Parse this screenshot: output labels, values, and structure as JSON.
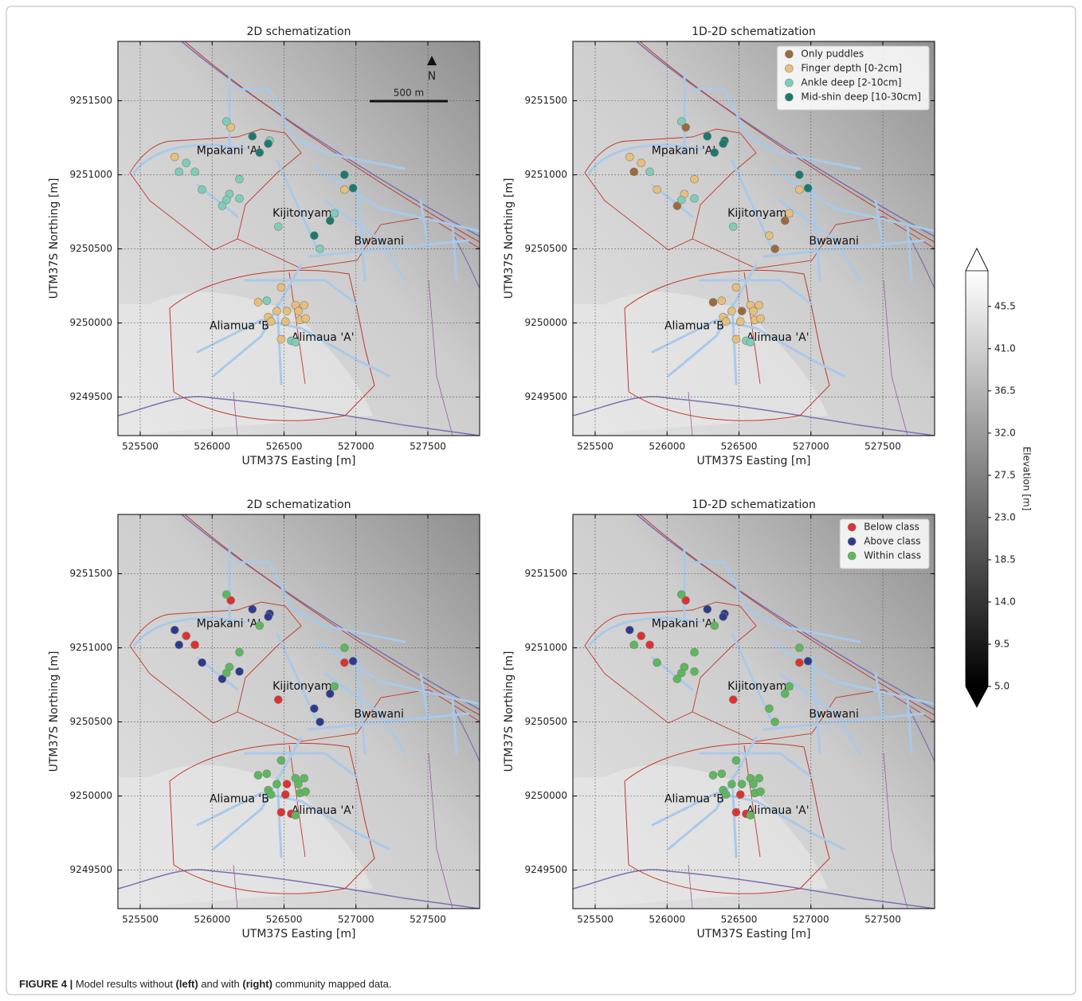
{
  "chart_data": [
    {
      "type": "scatter",
      "title": "2D schematization",
      "xlabel": "UTM37S Easting [m]",
      "ylabel": "UTM37S Northing [m]",
      "xlim": [
        525345,
        527860
      ],
      "ylim": [
        9249240,
        9251900
      ],
      "xticks": [
        525500,
        526000,
        526500,
        527000,
        527500
      ],
      "yticks": [
        9249500,
        9250000,
        9250500,
        9251000,
        9251500
      ],
      "grid": true,
      "north_label": "N",
      "scale_label": "500 m",
      "annotations": [
        {
          "text": "Mpakani 'A'",
          "x": 526115,
          "y": 9251160
        },
        {
          "text": "Kijitonyama",
          "x": 526650,
          "y": 9250740
        },
        {
          "text": "Bwawani",
          "x": 527160,
          "y": 9250550
        },
        {
          "text": "Aliamua 'B'",
          "x": 526200,
          "y": 9249980
        },
        {
          "text": "Alimaua 'A'",
          "x": 526770,
          "y": 9249900
        }
      ],
      "series": [
        {
          "color": "#e6c07a",
          "x": [
            526130,
            525740,
            526920,
            526480,
            526320,
            526450,
            526390,
            526520,
            526580,
            526640,
            526600,
            526410,
            526510,
            526610,
            526650,
            526480
          ],
          "y": [
            9251320,
            9251120,
            9250900,
            9250240,
            9250140,
            9250080,
            9250040,
            9250080,
            9250120,
            9250120,
            9250080,
            9250010,
            9250010,
            9250020,
            9250030,
            9249890
          ]
        },
        {
          "color": "#7ecdb9",
          "x": [
            526100,
            526400,
            525820,
            525770,
            525880,
            525930,
            526190,
            526120,
            526100,
            526070,
            526190,
            526850,
            526460,
            526750,
            526380,
            526550,
            526580
          ],
          "y": [
            9251360,
            9251230,
            9251080,
            9251020,
            9251020,
            9250900,
            9250970,
            9250870,
            9250830,
            9250790,
            9250840,
            9250740,
            9250650,
            9250500,
            9250150,
            9249880,
            9249870
          ]
        },
        {
          "color": "#1a7a6e",
          "x": [
            526280,
            526390,
            526330,
            526920,
            526980,
            526820,
            526710
          ],
          "y": [
            9251260,
            9251210,
            9251150,
            9251000,
            9250910,
            9250690,
            9250590
          ]
        }
      ]
    },
    {
      "type": "scatter",
      "title": "1D-2D schematization",
      "xlabel": "UTM37S Easting [m]",
      "ylabel": "UTM37S Northing [m]",
      "xlim": [
        525345,
        527860
      ],
      "ylim": [
        9249240,
        9251900
      ],
      "xticks": [
        525500,
        526000,
        526500,
        527000,
        527500
      ],
      "yticks": [
        9249500,
        9250000,
        9250500,
        9251000,
        9251500
      ],
      "grid": true,
      "legend": "upper right",
      "annotations": [
        {
          "text": "Mpakani 'A'",
          "x": 526115,
          "y": 9251160
        },
        {
          "text": "Kijitonyama",
          "x": 526650,
          "y": 9250740
        },
        {
          "text": "Bwawani",
          "x": 527160,
          "y": 9250550
        },
        {
          "text": "Aliamua 'B'",
          "x": 526200,
          "y": 9249980
        },
        {
          "text": "Alimaua 'A'",
          "x": 526770,
          "y": 9249900
        }
      ],
      "series": [
        {
          "name": "Only puddles",
          "color": "#9c6a3a",
          "x": [
            526130,
            525770,
            526070,
            526820,
            526750,
            526320,
            526520
          ],
          "y": [
            9251320,
            9251020,
            9250790,
            9250690,
            9250500,
            9250140,
            9250080
          ]
        },
        {
          "name": "Finger depth [0-2cm]",
          "color": "#e6c07a",
          "x": [
            525740,
            525820,
            525930,
            526190,
            526120,
            526920,
            526850,
            526710,
            526480,
            526380,
            526450,
            526390,
            526580,
            526640,
            526600,
            526410,
            526510,
            526610,
            526650,
            526480
          ],
          "y": [
            9251120,
            9251080,
            9250900,
            9250970,
            9250870,
            9250900,
            9250740,
            9250590,
            9250240,
            9250150,
            9250080,
            9250040,
            9250120,
            9250120,
            9250080,
            9250010,
            9250010,
            9250020,
            9250030,
            9249890
          ]
        },
        {
          "name": "Ankle deep [2-10cm]",
          "color": "#7ecdb9",
          "x": [
            526100,
            525880,
            526100,
            526190,
            526460,
            526550,
            526580
          ],
          "y": [
            9251360,
            9251020,
            9250830,
            9250840,
            9250650,
            9249880,
            9249870
          ]
        },
        {
          "name": "Mid-shin deep [10-30cm]",
          "color": "#1a7a6e",
          "x": [
            526280,
            526400,
            526390,
            526330,
            526920,
            526980
          ],
          "y": [
            9251260,
            9251230,
            9251210,
            9251150,
            9251000,
            9250910
          ]
        }
      ]
    },
    {
      "type": "scatter",
      "title": "2D schematization",
      "xlabel": "UTM37S Easting [m]",
      "ylabel": "UTM37S Northing [m]",
      "xlim": [
        525345,
        527860
      ],
      "ylim": [
        9249240,
        9251900
      ],
      "xticks": [
        525500,
        526000,
        526500,
        527000,
        527500
      ],
      "yticks": [
        9249500,
        9250000,
        9250500,
        9251000,
        9251500
      ],
      "grid": true,
      "annotations": [
        {
          "text": "Mpakani 'A'",
          "x": 526115,
          "y": 9251160
        },
        {
          "text": "Kijitonyama",
          "x": 526650,
          "y": 9250740
        },
        {
          "text": "Bwawani",
          "x": 527160,
          "y": 9250550
        },
        {
          "text": "Aliamua 'B'",
          "x": 526200,
          "y": 9249980
        },
        {
          "text": "Alimaua 'A'",
          "x": 526770,
          "y": 9249900
        }
      ],
      "series": [
        {
          "color": "#e03030",
          "x": [
            526130,
            525820,
            525880,
            526920,
            526460,
            526520,
            526510,
            526480,
            526550
          ],
          "y": [
            9251320,
            9251080,
            9251020,
            9250900,
            9250650,
            9250080,
            9250010,
            9249890,
            9249880
          ]
        },
        {
          "color": "#2e3a8c",
          "x": [
            526280,
            526400,
            526390,
            525740,
            525770,
            525930,
            526070,
            526190,
            526980,
            526820,
            526710,
            526750
          ],
          "y": [
            9251260,
            9251230,
            9251210,
            9251120,
            9251020,
            9250900,
            9250790,
            9250840,
            9250910,
            9250690,
            9250590,
            9250500
          ]
        },
        {
          "color": "#5cb85c",
          "x": [
            526100,
            526330,
            526190,
            526120,
            526100,
            526920,
            526850,
            526480,
            526320,
            526380,
            526450,
            526390,
            526580,
            526640,
            526600,
            526410,
            526610,
            526650,
            526580
          ],
          "y": [
            9251360,
            9251150,
            9250970,
            9250870,
            9250830,
            9251000,
            9250740,
            9250240,
            9250140,
            9250150,
            9250080,
            9250040,
            9250120,
            9250120,
            9250080,
            9250010,
            9250020,
            9250030,
            9249870
          ]
        }
      ]
    },
    {
      "type": "scatter",
      "title": "1D-2D schematization",
      "xlabel": "UTM37S Easting [m]",
      "ylabel": "UTM37S Northing [m]",
      "xlim": [
        525345,
        527860
      ],
      "ylim": [
        9249240,
        9251900
      ],
      "xticks": [
        525500,
        526000,
        526500,
        527000,
        527500
      ],
      "yticks": [
        9249500,
        9250000,
        9250500,
        9251000,
        9251500
      ],
      "grid": true,
      "legend": "upper right",
      "annotations": [
        {
          "text": "Mpakani 'A'",
          "x": 526115,
          "y": 9251160
        },
        {
          "text": "Kijitonyama",
          "x": 526650,
          "y": 9250740
        },
        {
          "text": "Bwawani",
          "x": 527160,
          "y": 9250550
        },
        {
          "text": "Aliamua 'B'",
          "x": 526200,
          "y": 9249980
        },
        {
          "text": "Alimaua 'A'",
          "x": 526770,
          "y": 9249900
        }
      ],
      "series": [
        {
          "name": "Below class",
          "color": "#e03030",
          "x": [
            526130,
            525820,
            525880,
            526920,
            526460,
            526510,
            526480,
            526550
          ],
          "y": [
            9251320,
            9251080,
            9251020,
            9250900,
            9250650,
            9250010,
            9249890,
            9249880
          ]
        },
        {
          "name": "Above class",
          "color": "#2e3a8c",
          "x": [
            526280,
            526400,
            526390,
            525740,
            526980
          ],
          "y": [
            9251260,
            9251230,
            9251210,
            9251120,
            9250910
          ]
        },
        {
          "name": "Within class",
          "color": "#5cb85c",
          "x": [
            526100,
            526330,
            525770,
            525930,
            526190,
            526120,
            526100,
            526070,
            526190,
            526920,
            526850,
            526820,
            526710,
            526750,
            526480,
            526320,
            526380,
            526450,
            526390,
            526520,
            526580,
            526640,
            526600,
            526410,
            526610,
            526650,
            526580
          ],
          "y": [
            9251360,
            9251150,
            9251020,
            9250900,
            9250970,
            9250870,
            9250830,
            9250790,
            9250840,
            9251000,
            9250740,
            9250690,
            9250590,
            9250500,
            9250240,
            9250140,
            9250150,
            9250080,
            9250040,
            9250080,
            9250120,
            9250120,
            9250080,
            9250010,
            9250020,
            9250030,
            9249870
          ]
        }
      ]
    }
  ],
  "colorbar": {
    "label": "Elevation [m]",
    "clim": [
      5,
      49.3
    ],
    "ticks": [
      {
        "value": 5,
        "label": "5.0"
      },
      9.5,
      {
        "value": 14,
        "label": "14.0"
      },
      18.5,
      {
        "value": 23,
        "label": "23.0"
      },
      27.5,
      {
        "value": 32,
        "label": "32.0"
      },
      36.5,
      {
        "value": 41,
        "label": "41.0"
      },
      45.5
    ]
  },
  "caption": {
    "label": "FIGURE 4 |",
    "parts": [
      " Model results without ",
      "(left)",
      " and with ",
      "(right)",
      " community mapped data."
    ]
  }
}
